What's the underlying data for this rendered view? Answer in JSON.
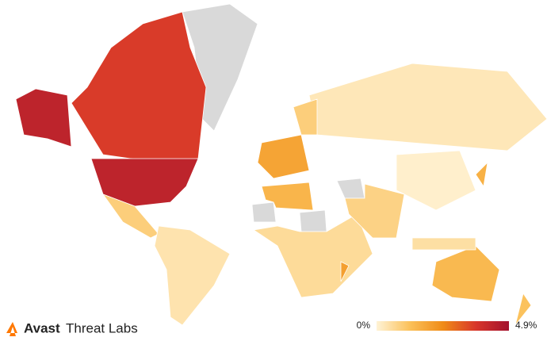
{
  "chart_data": {
    "type": "choropleth",
    "values": [
      3.6,
      4.3,
      0.9,
      0.4,
      1.9,
      0.3,
      0.1,
      0.6,
      1.5,
      0.8,
      1.4,
      1.6,
      2.0,
      1.2,
      0.9,
      0.5
    ],
    "colors": [
      "#fff3d6",
      "#fbc15a",
      "#f08c17",
      "#d8362a",
      "#a3122e"
    ],
    "no_data_color": "#d9d9d9",
    "colorbar_ticks": [
      {
        "value": 0,
        "label": "0%"
      },
      {
        "value": 4.9,
        "label": "4.9%"
      }
    ]
  },
  "brand": {
    "name": "Avast",
    "product": "Threat Labs"
  }
}
